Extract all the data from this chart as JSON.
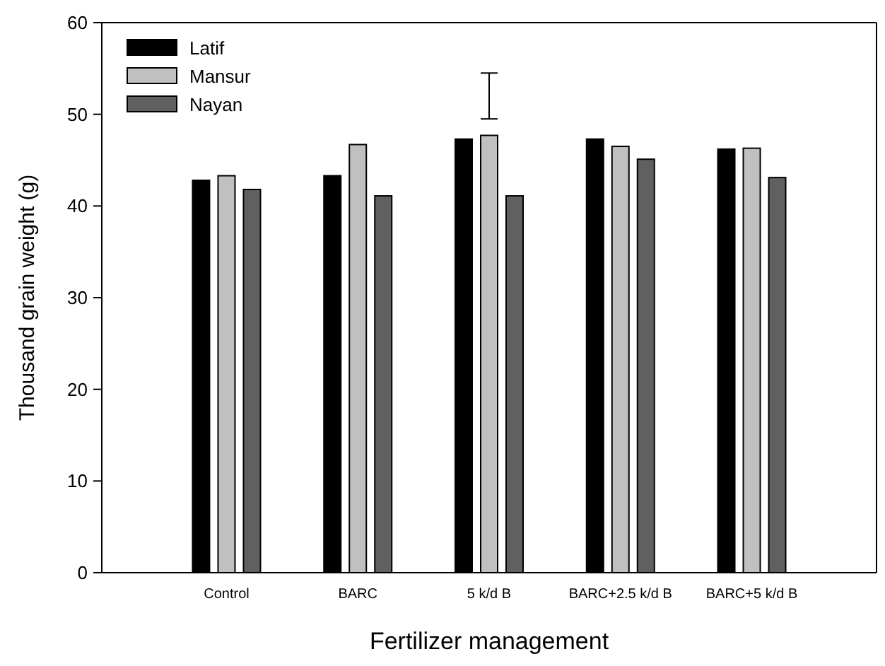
{
  "chart_data": {
    "type": "bar",
    "xlabel": "Fertilizer management",
    "ylabel": "Thousand grain weight (g)",
    "categories": [
      "Control",
      "BARC",
      "5 k/d B",
      "BARC+2.5 k/d B",
      "BARC+5 k/d B"
    ],
    "series": [
      {
        "name": "Latif",
        "color": "#000000",
        "values": [
          42.8,
          43.3,
          47.3,
          47.3,
          46.2
        ]
      },
      {
        "name": "Mansur",
        "color": "#c0c0c0",
        "values": [
          43.3,
          46.7,
          47.7,
          46.5,
          46.3
        ],
        "errors": [
          null,
          null,
          [
            49.5,
            54.5
          ],
          null,
          null
        ]
      },
      {
        "name": "Nayan",
        "color": "#606060",
        "values": [
          41.8,
          41.1,
          41.1,
          45.1,
          43.1
        ]
      }
    ],
    "ylim": [
      0,
      60
    ],
    "yticks": [
      0,
      10,
      20,
      30,
      40,
      50,
      60
    ],
    "legend": "top left",
    "grid": false
  }
}
